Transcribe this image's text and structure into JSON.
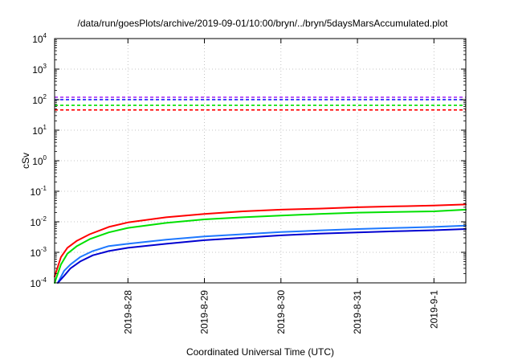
{
  "chart_data": {
    "type": "line",
    "title": "/data/run/goesPlots/archive/2019-09-01/10:00/bryn/../bryn/5daysMarsAccumulated.plot",
    "xlabel": "Coordinated Universal Time (UTC)",
    "ylabel": "cSv",
    "yscale": "log",
    "ylim": [
      0.0001,
      10000
    ],
    "xlim": [
      "2019-08-27T01:00",
      "2019-09-01T10:00"
    ],
    "grid": true,
    "legend": "none",
    "y_ticks": [
      {
        "value": 0.0001,
        "base": "10",
        "exp": "-4"
      },
      {
        "value": 0.001,
        "base": "10",
        "exp": "-3"
      },
      {
        "value": 0.01,
        "base": "10",
        "exp": "-2"
      },
      {
        "value": 0.1,
        "base": "10",
        "exp": "-1"
      },
      {
        "value": 1,
        "base": "10",
        "exp": "0"
      },
      {
        "value": 10,
        "base": "10",
        "exp": "1"
      },
      {
        "value": 100,
        "base": "10",
        "exp": "2"
      },
      {
        "value": 1000,
        "base": "10",
        "exp": "3"
      },
      {
        "value": 10000,
        "base": "10",
        "exp": "4"
      }
    ],
    "x_ticks": [
      {
        "value": "2019-08-28T00:00",
        "label": "2019-8-28"
      },
      {
        "value": "2019-08-29T00:00",
        "label": "2019-8-29"
      },
      {
        "value": "2019-08-30T00:00",
        "label": "2019-8-30"
      },
      {
        "value": "2019-08-31T00:00",
        "label": "2019-8-31"
      },
      {
        "value": "2019-09-01T00:00",
        "label": "2019-9-1"
      }
    ],
    "thresholds": [
      {
        "value": 120,
        "color": "#a020f0"
      },
      {
        "value": 100,
        "color": "#0000ff"
      },
      {
        "value": 65,
        "color": "#00e000"
      },
      {
        "value": 46,
        "color": "#ff0000"
      }
    ],
    "series": [
      {
        "color": "#ff0000",
        "x": [
          "2019-08-27T01:00",
          "2019-08-27T03:00",
          "2019-08-27T05:00",
          "2019-08-27T08:00",
          "2019-08-27T12:00",
          "2019-08-27T18:00",
          "2019-08-28T00:00",
          "2019-08-28T12:00",
          "2019-08-29T00:00",
          "2019-08-29T12:00",
          "2019-08-30T00:00",
          "2019-08-30T12:00",
          "2019-08-31T00:00",
          "2019-08-31T12:00",
          "2019-09-01T00:00",
          "2019-09-01T10:00"
        ],
        "y": [
          0.00016,
          0.0007,
          0.0014,
          0.0024,
          0.0039,
          0.0068,
          0.0095,
          0.014,
          0.018,
          0.022,
          0.025,
          0.027,
          0.03,
          0.032,
          0.034,
          0.037
        ]
      },
      {
        "color": "#00e000",
        "x": [
          "2019-08-27T01:00",
          "2019-08-27T03:00",
          "2019-08-27T05:00",
          "2019-08-27T08:00",
          "2019-08-27T12:00",
          "2019-08-27T18:00",
          "2019-08-28T00:00",
          "2019-08-28T12:00",
          "2019-08-29T00:00",
          "2019-08-29T12:00",
          "2019-08-30T00:00",
          "2019-08-30T12:00",
          "2019-08-31T00:00",
          "2019-08-31T12:00",
          "2019-09-01T00:00",
          "2019-09-01T10:00"
        ],
        "y": [
          0.0001,
          0.0004,
          0.0009,
          0.0016,
          0.0027,
          0.0045,
          0.0063,
          0.0092,
          0.012,
          0.014,
          0.016,
          0.018,
          0.02,
          0.021,
          0.022,
          0.025
        ]
      },
      {
        "color": "#1e78ff",
        "x": [
          "2019-08-27T02:00",
          "2019-08-27T04:00",
          "2019-08-27T06:00",
          "2019-08-27T09:00",
          "2019-08-27T13:00",
          "2019-08-27T18:00",
          "2019-08-28T00:00",
          "2019-08-28T12:00",
          "2019-08-29T00:00",
          "2019-08-29T12:00",
          "2019-08-30T00:00",
          "2019-08-30T12:00",
          "2019-08-31T00:00",
          "2019-08-31T12:00",
          "2019-09-01T00:00",
          "2019-09-01T10:00"
        ],
        "y": [
          0.0001,
          0.00025,
          0.0004,
          0.0007,
          0.0011,
          0.0016,
          0.0019,
          0.0026,
          0.0033,
          0.0039,
          0.0046,
          0.0052,
          0.0058,
          0.0063,
          0.0068,
          0.0075
        ]
      },
      {
        "color": "#0000d0",
        "x": [
          "2019-08-27T02:00",
          "2019-08-27T04:00",
          "2019-08-27T06:00",
          "2019-08-27T09:00",
          "2019-08-27T13:00",
          "2019-08-27T18:00",
          "2019-08-28T00:00",
          "2019-08-28T12:00",
          "2019-08-29T00:00",
          "2019-08-29T12:00",
          "2019-08-30T00:00",
          "2019-08-30T12:00",
          "2019-08-31T00:00",
          "2019-08-31T12:00",
          "2019-09-01T00:00",
          "2019-09-01T10:00"
        ],
        "y": [
          0.0001,
          0.00017,
          0.0003,
          0.0005,
          0.0008,
          0.0011,
          0.0014,
          0.0019,
          0.0025,
          0.003,
          0.0036,
          0.0041,
          0.0045,
          0.0049,
          0.0053,
          0.0058
        ]
      }
    ]
  }
}
